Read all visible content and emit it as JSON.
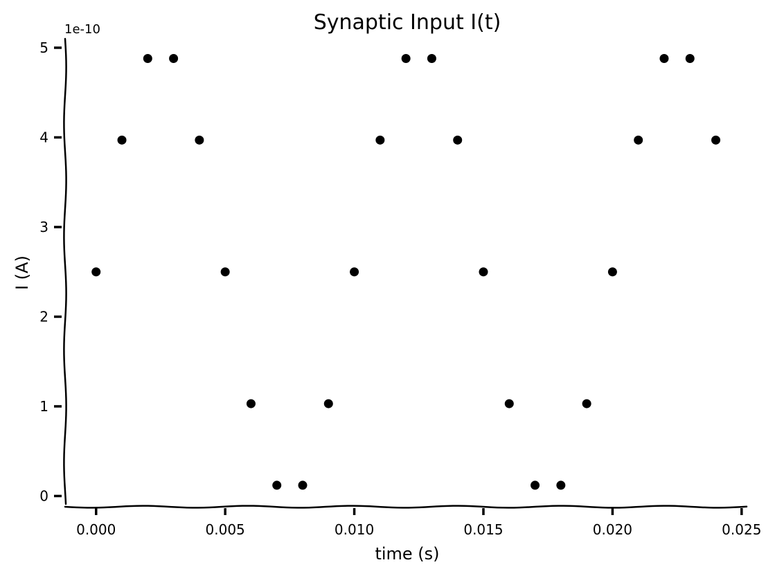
{
  "chart_data": {
    "type": "scatter",
    "title": "Synaptic Input I(t)",
    "xlabel": "time (s)",
    "ylabel": "I (A)",
    "y_offset_label": "1e-10",
    "xlim": [
      -0.0012,
      0.0253
    ],
    "ylim": [
      -0.12,
      5.1
    ],
    "x_ticks": [
      0.0,
      0.005,
      0.01,
      0.015,
      0.02,
      0.025
    ],
    "x_tick_labels": [
      "0.000",
      "0.005",
      "0.010",
      "0.015",
      "0.020",
      "0.025"
    ],
    "y_ticks": [
      0,
      1,
      2,
      3,
      4,
      5
    ],
    "y_tick_labels": [
      "0",
      "1",
      "2",
      "3",
      "4",
      "5"
    ],
    "grid": false,
    "marker_color": "#000000",
    "series": [
      {
        "x": [
          0.0,
          0.001,
          0.002,
          0.003,
          0.004,
          0.005,
          0.006,
          0.007,
          0.008,
          0.009,
          0.01,
          0.011,
          0.012,
          0.013,
          0.014,
          0.015,
          0.016,
          0.017,
          0.018,
          0.019,
          0.02,
          0.021,
          0.022,
          0.023,
          0.024
        ],
        "y": [
          2.5,
          3.97,
          4.88,
          4.88,
          3.97,
          2.5,
          1.03,
          0.12,
          0.12,
          1.03,
          2.5,
          3.97,
          4.88,
          4.88,
          3.97,
          2.5,
          1.03,
          0.12,
          0.12,
          1.03,
          2.5,
          3.97,
          4.88,
          4.88,
          3.97
        ]
      }
    ]
  }
}
